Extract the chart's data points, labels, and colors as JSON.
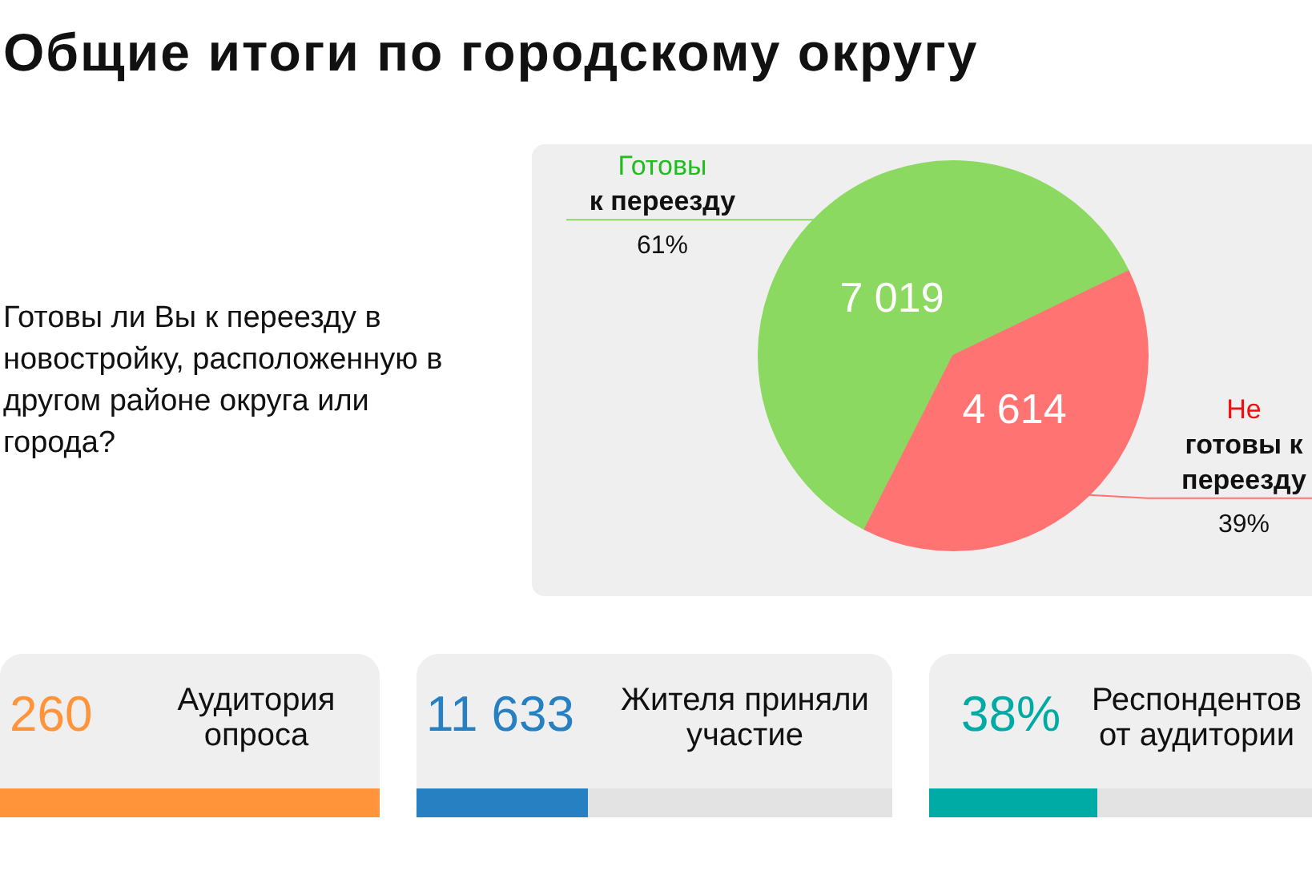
{
  "chart_data": [
    {
      "type": "pie",
      "title": "Общие итоги по городскому округу",
      "subtitle": "Готовы ли Вы к переезду в новостройку, расположенную в другом районе округа или города?",
      "categories": [
        "Готовы к переезду",
        "Не готовы к переезду"
      ],
      "values": [
        7019,
        4614
      ],
      "colors": [
        "#8cd962",
        "#ff7373"
      ],
      "value_labels": [
        "7 019",
        "4 614"
      ],
      "annotations": [
        "61%",
        "39%"
      ]
    },
    {
      "type": "other",
      "annotations": [
        "260",
        "Аудитория опроса",
        "11 633",
        "Жителя приняли участие",
        "38%",
        "Респондентов от аудитории"
      ]
    }
  ]
}
